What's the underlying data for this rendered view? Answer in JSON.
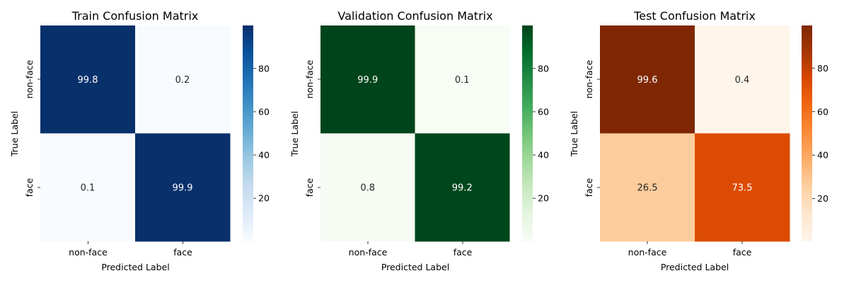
{
  "chart_data": [
    {
      "type": "heatmap",
      "title": "Train Confusion Matrix",
      "xlabel": "Predicted Label",
      "ylabel": "True Label",
      "x_categories": [
        "non-face",
        "face"
      ],
      "y_categories": [
        "non-face",
        "face"
      ],
      "values": [
        [
          99.8,
          0.2
        ],
        [
          0.1,
          99.9
        ]
      ],
      "value_range": [
        0.1,
        99.9
      ],
      "colormap": "Blues",
      "colorbar_ticks": [
        20,
        40,
        60,
        80
      ]
    },
    {
      "type": "heatmap",
      "title": "Validation Confusion Matrix",
      "xlabel": "Predicted Label",
      "ylabel": "True Label",
      "x_categories": [
        "non-face",
        "face"
      ],
      "y_categories": [
        "non-face",
        "face"
      ],
      "values": [
        [
          99.9,
          0.1
        ],
        [
          0.8,
          99.2
        ]
      ],
      "value_range": [
        0.1,
        99.9
      ],
      "colormap": "Greens",
      "colorbar_ticks": [
        20,
        40,
        60,
        80
      ]
    },
    {
      "type": "heatmap",
      "title": "Test Confusion Matrix",
      "xlabel": "Predicted Label",
      "ylabel": "True Label",
      "x_categories": [
        "non-face",
        "face"
      ],
      "y_categories": [
        "non-face",
        "face"
      ],
      "values": [
        [
          99.6,
          0.4
        ],
        [
          26.5,
          73.5
        ]
      ],
      "value_range": [
        0.4,
        99.6
      ],
      "colormap": "Oranges",
      "colorbar_ticks": [
        20,
        40,
        60,
        80
      ]
    }
  ],
  "colormaps": {
    "Blues": [
      "#f7fbff",
      "#deebf7",
      "#c6dbef",
      "#9ecae1",
      "#6baed6",
      "#4292c6",
      "#2171b5",
      "#08519c",
      "#08306b"
    ],
    "Greens": [
      "#f7fcf5",
      "#e5f5e0",
      "#c7e9c0",
      "#a1d99b",
      "#74c476",
      "#41ab5d",
      "#238b45",
      "#006d2c",
      "#00441b"
    ],
    "Oranges": [
      "#fff5eb",
      "#fee6ce",
      "#fdd0a2",
      "#fdae6b",
      "#fd8d3c",
      "#f16913",
      "#d94801",
      "#a63603",
      "#7f2704"
    ]
  },
  "annotation_text_colors": {
    "on_dark": "#ffffff",
    "on_light": "#262626"
  }
}
